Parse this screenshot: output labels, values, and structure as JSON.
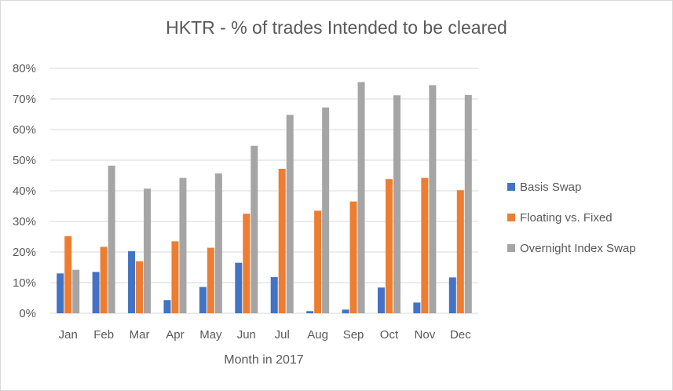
{
  "colors": {
    "basis": "#4472c4",
    "floating": "#ed7d31",
    "overnight": "#a5a5a5",
    "grid": "#d9d9d9",
    "text": "#595959"
  },
  "chart_data": {
    "type": "bar",
    "title": "HKTR  - % of trades Intended to be cleared",
    "xlabel": "Month in 2017",
    "ylabel": "",
    "ylim": [
      0,
      0.8
    ],
    "yticks": [
      "0%",
      "10%",
      "20%",
      "30%",
      "40%",
      "50%",
      "60%",
      "70%",
      "80%"
    ],
    "grid": "horizontal",
    "legend_position": "right",
    "categories": [
      "Jan",
      "Feb",
      "Mar",
      "Apr",
      "May",
      "Jun",
      "Jul",
      "Aug",
      "Sep",
      "Oct",
      "Nov",
      "Dec"
    ],
    "series": [
      {
        "name": "Basis Swap",
        "color_key": "basis",
        "values": [
          0.13,
          0.135,
          0.203,
          0.043,
          0.086,
          0.165,
          0.118,
          0.007,
          0.012,
          0.084,
          0.035,
          0.117
        ]
      },
      {
        "name": "Floating vs. Fixed",
        "color_key": "floating",
        "values": [
          0.252,
          0.217,
          0.17,
          0.235,
          0.214,
          0.325,
          0.472,
          0.335,
          0.365,
          0.438,
          0.442,
          0.402
        ]
      },
      {
        "name": "Overnight Index Swap",
        "color_key": "overnight",
        "values": [
          0.142,
          0.482,
          0.407,
          0.442,
          0.457,
          0.547,
          0.648,
          0.672,
          0.755,
          0.712,
          0.745,
          0.713
        ]
      }
    ]
  }
}
